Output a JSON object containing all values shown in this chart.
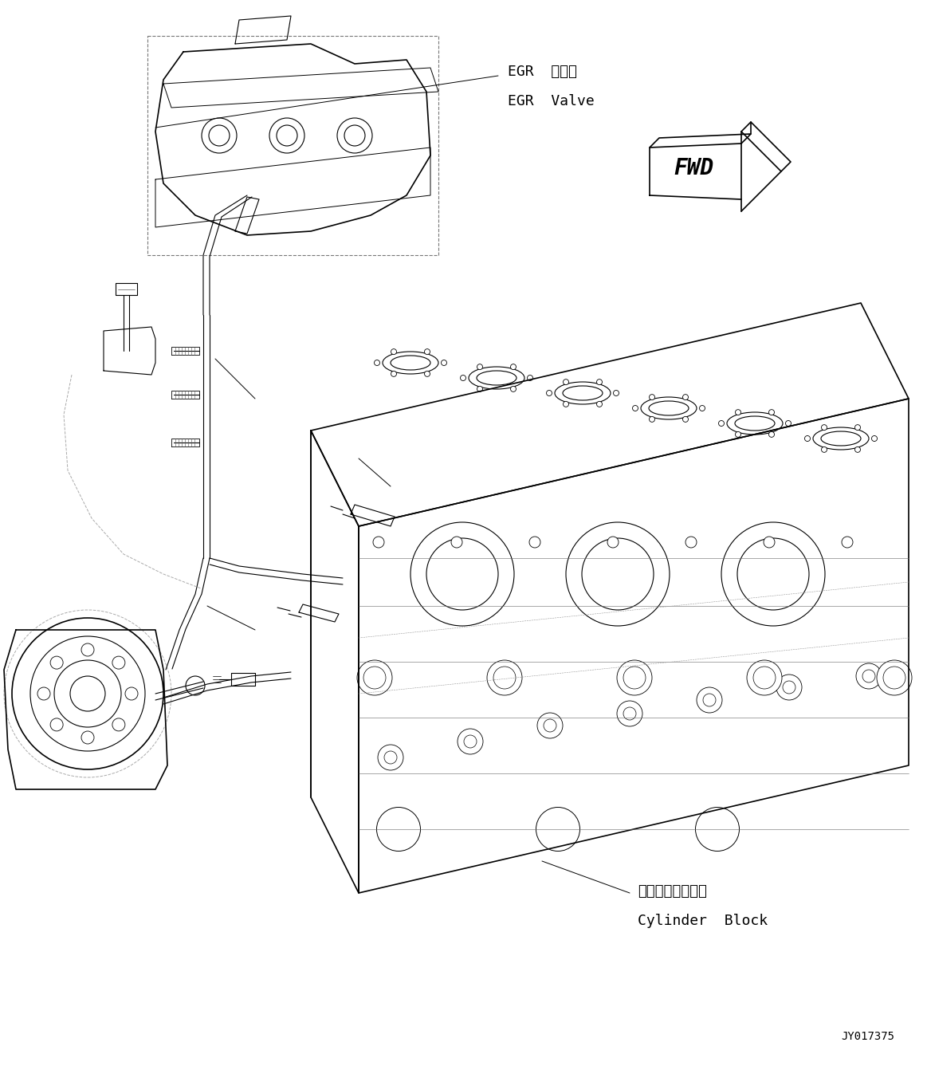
{
  "bg_color": "#ffffff",
  "line_color": "#000000",
  "fig_width": 11.63,
  "fig_height": 13.37,
  "dpi": 100,
  "egr_label_1": "EGR  バルブ",
  "egr_label_2": "EGR  Valve",
  "cylinder_label_1": "シリンダブロック",
  "cylinder_label_2": "Cylinder  Block",
  "part_number": "JY017375",
  "fwd_text": "FWD"
}
